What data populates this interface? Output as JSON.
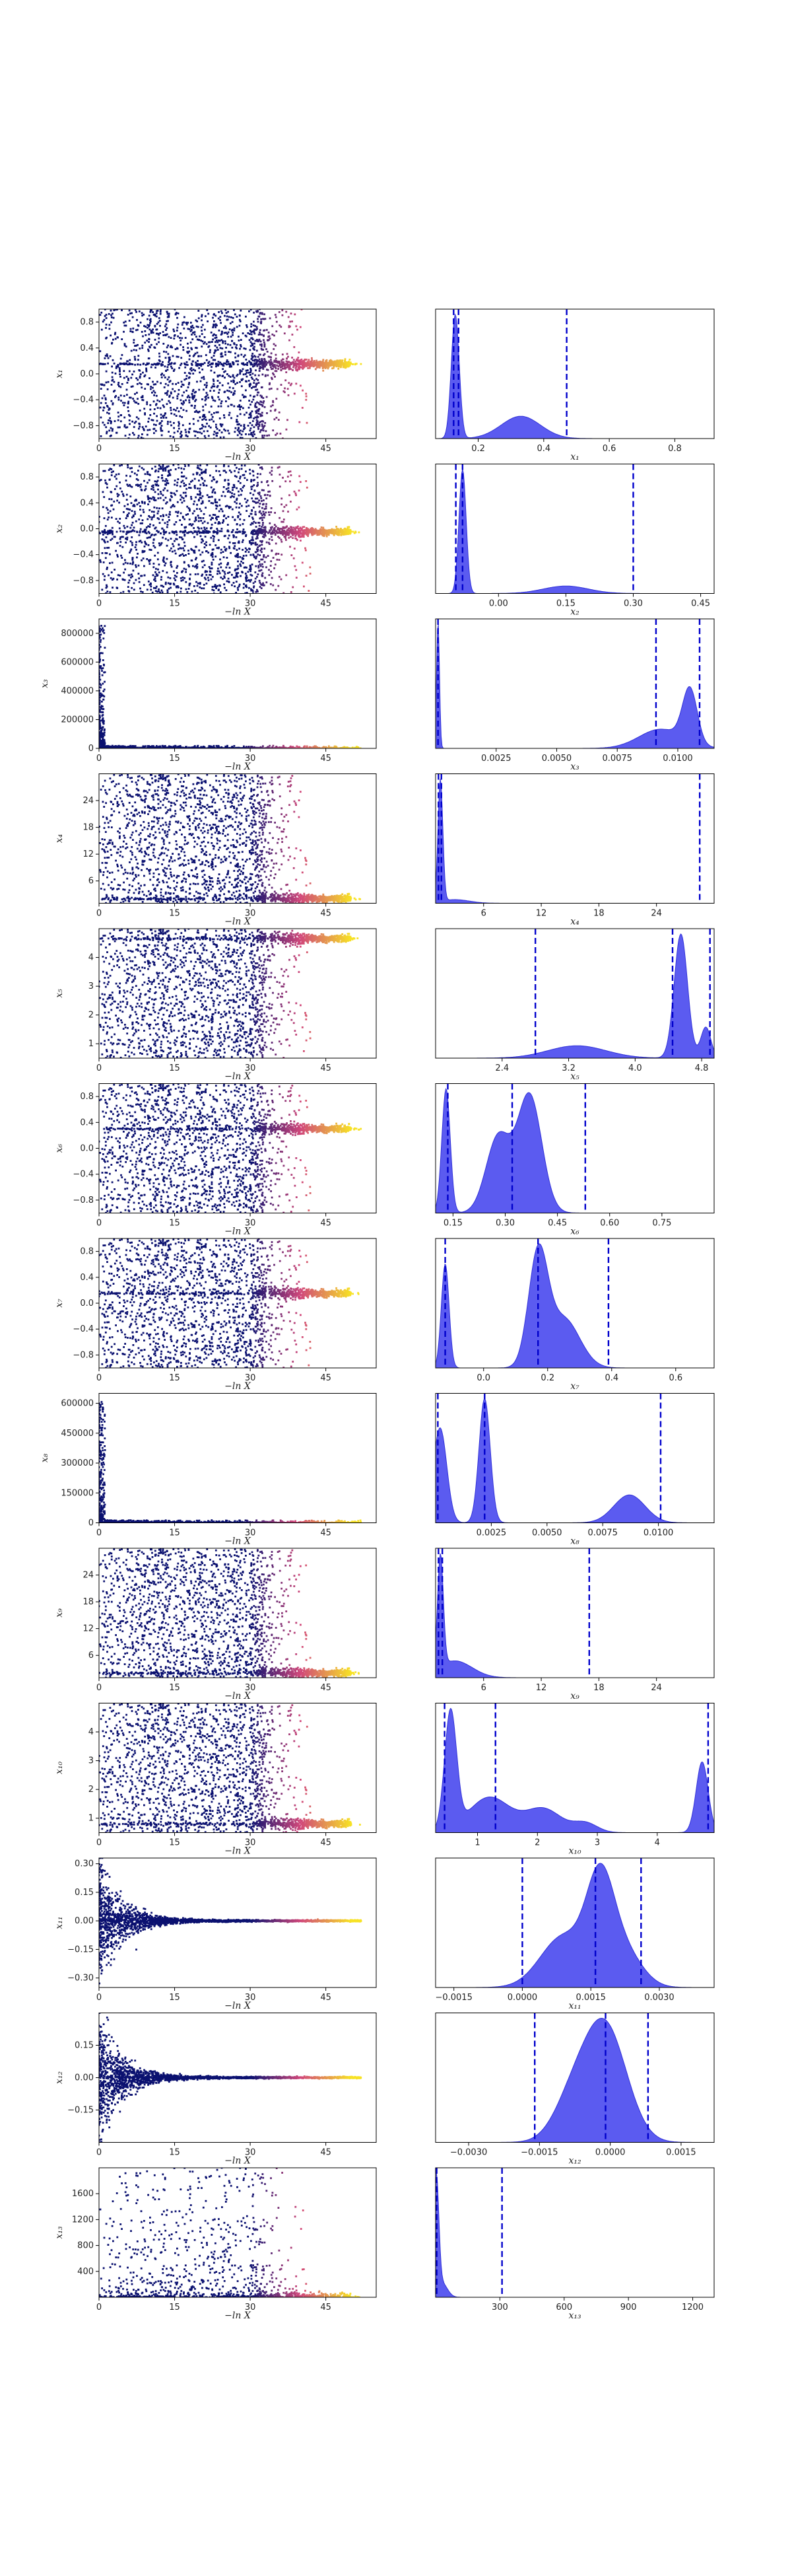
{
  "figure": {
    "scatter_xticks": [
      0,
      15,
      30,
      45
    ],
    "scatter_xlim": [
      0,
      55
    ],
    "scatter_xlabel": "−ln X",
    "colors": {
      "hist_fill": "#5b5bf0",
      "hist_edge": "#3232d8",
      "quantile_line": "#0000cc",
      "scatter_low": "#0b1170",
      "scatter_mid": "#d1487a",
      "scatter_high": "#f7e225"
    }
  },
  "chart_data": [
    {
      "type": "scatter+hist",
      "param": "x1",
      "ylabel": "x₁",
      "xlabel_hist": "x₁",
      "ylim": [
        -1,
        1
      ],
      "yticks": [
        "0.8",
        "0.4",
        "0.0",
        "−0.4",
        "−0.8"
      ],
      "ytick_vals": [
        0.8,
        0.4,
        0,
        -0.4,
        -0.8
      ],
      "converge": 0.15,
      "band_ylim": [
        -1,
        1
      ],
      "hist_xlim": [
        0.07,
        0.92
      ],
      "hist_xticks": [
        "0.2",
        "0.4",
        "0.6",
        "0.8"
      ],
      "hist_xtick_vals": [
        0.2,
        0.4,
        0.6,
        0.8
      ],
      "hist_peaks": [
        [
          0.13,
          1.0,
          0.012
        ],
        [
          0.33,
          0.18,
          0.06
        ]
      ],
      "quantiles": [
        0.125,
        0.14,
        0.47
      ]
    },
    {
      "type": "scatter+hist",
      "param": "x2",
      "ylabel": "x₂",
      "xlabel_hist": "x₂",
      "ylim": [
        -1,
        1
      ],
      "yticks": [
        "0.8",
        "0.4",
        "0.0",
        "−0.4",
        "−0.8"
      ],
      "ytick_vals": [
        0.8,
        0.4,
        0,
        -0.4,
        -0.8
      ],
      "converge": -0.05,
      "band_ylim": [
        -1,
        1
      ],
      "hist_xlim": [
        -0.14,
        0.48
      ],
      "hist_xticks": [
        "0.00",
        "0.15",
        "0.30",
        "0.45"
      ],
      "hist_xtick_vals": [
        0,
        0.15,
        0.3,
        0.45
      ],
      "hist_peaks": [
        [
          -0.08,
          1.0,
          0.008
        ],
        [
          0.15,
          0.06,
          0.05
        ]
      ],
      "quantiles": [
        -0.095,
        -0.08,
        0.3
      ]
    },
    {
      "type": "scatter+hist",
      "param": "x3",
      "ylabel": "x₃",
      "xlabel_hist": "x₃",
      "ylim": [
        0,
        900000
      ],
      "yticks": [
        "800000",
        "600000",
        "400000",
        "200000",
        "0"
      ],
      "ytick_vals": [
        800000,
        600000,
        400000,
        200000,
        0
      ],
      "converge": 0,
      "band_ylim": [
        0,
        900000
      ],
      "spike": true,
      "hist_xlim": [
        0,
        0.0115
      ],
      "hist_xticks": [
        "0.0025",
        "0.0050",
        "0.0075",
        "0.0100"
      ],
      "hist_xtick_vals": [
        0.0025,
        0.005,
        0.0075,
        0.01
      ],
      "hist_peaks": [
        [
          0.0001,
          1.0,
          6e-05
        ],
        [
          0.0093,
          0.15,
          0.0009
        ],
        [
          0.0105,
          0.42,
          0.0003
        ]
      ],
      "quantiles": [
        0.0001,
        0.0091,
        0.0109
      ]
    },
    {
      "type": "scatter+hist",
      "param": "x4",
      "ylabel": "x₄",
      "xlabel_hist": "x₄",
      "ylim": [
        1,
        30
      ],
      "yticks": [
        "24",
        "18",
        "12",
        "6"
      ],
      "ytick_vals": [
        24,
        18,
        12,
        6
      ],
      "converge": 2,
      "band_ylim": [
        1,
        30
      ],
      "hist_xlim": [
        1,
        30
      ],
      "hist_xticks": [
        "6",
        "12",
        "18",
        "24"
      ],
      "hist_xtick_vals": [
        6,
        12,
        18,
        24
      ],
      "hist_peaks": [
        [
          1.5,
          1.0,
          0.25
        ],
        [
          3,
          0.03,
          1.5
        ]
      ],
      "quantiles": [
        1.3,
        1.6,
        28.5
      ]
    },
    {
      "type": "scatter+hist",
      "param": "x5",
      "ylabel": "x₅",
      "xlabel_hist": "x₅",
      "ylim": [
        0.5,
        5
      ],
      "yticks": [
        "4",
        "3",
        "2",
        "1"
      ],
      "ytick_vals": [
        4,
        3,
        2,
        1
      ],
      "converge": 4.65,
      "band_ylim": [
        0.5,
        5
      ],
      "hist_xlim": [
        1.6,
        4.95
      ],
      "hist_xticks": [
        "2.4",
        "3.2",
        "4.0",
        "4.8"
      ],
      "hist_xtick_vals": [
        2.4,
        3.2,
        4,
        4.8
      ],
      "hist_peaks": [
        [
          4.55,
          1.0,
          0.08
        ],
        [
          3.3,
          0.1,
          0.35
        ],
        [
          4.85,
          0.25,
          0.06
        ]
      ],
      "quantiles": [
        2.8,
        4.45,
        4.9
      ]
    },
    {
      "type": "scatter+hist",
      "param": "x6",
      "ylabel": "x₆",
      "xlabel_hist": "x₆",
      "ylim": [
        -1,
        1
      ],
      "yticks": [
        "0.8",
        "0.4",
        "0.0",
        "−0.4",
        "−0.8"
      ],
      "ytick_vals": [
        0.8,
        0.4,
        0,
        -0.4,
        -0.8
      ],
      "converge": 0.3,
      "band_ylim": [
        -1,
        1
      ],
      "hist_xlim": [
        0.1,
        0.9
      ],
      "hist_xticks": [
        "0.15",
        "0.30",
        "0.45",
        "0.60",
        "0.75"
      ],
      "hist_xtick_vals": [
        0.15,
        0.3,
        0.45,
        0.6,
        0.75
      ],
      "hist_peaks": [
        [
          0.13,
          0.9,
          0.012
        ],
        [
          0.28,
          0.55,
          0.035
        ],
        [
          0.37,
          0.85,
          0.035
        ]
      ],
      "quantiles": [
        0.135,
        0.32,
        0.53
      ]
    },
    {
      "type": "scatter+hist",
      "param": "x7",
      "ylabel": "x₇",
      "xlabel_hist": "x₇",
      "ylim": [
        -1,
        1
      ],
      "yticks": [
        "0.8",
        "0.4",
        "0.0",
        "−0.4",
        "−0.8"
      ],
      "ytick_vals": [
        0.8,
        0.4,
        0,
        -0.4,
        -0.8
      ],
      "converge": 0.15,
      "band_ylim": [
        -1,
        1
      ],
      "hist_xlim": [
        -0.15,
        0.72
      ],
      "hist_xticks": [
        "0.0",
        "0.2",
        "0.4",
        "0.6"
      ],
      "hist_xtick_vals": [
        0,
        0.2,
        0.4,
        0.6
      ],
      "hist_peaks": [
        [
          -0.12,
          0.95,
          0.012
        ],
        [
          0.17,
          1.0,
          0.03
        ],
        [
          0.25,
          0.45,
          0.05
        ]
      ],
      "quantiles": [
        -0.12,
        0.17,
        0.39
      ]
    },
    {
      "type": "scatter+hist",
      "param": "x8",
      "ylabel": "x₈",
      "xlabel_hist": "x₈",
      "ylim": [
        0,
        650000
      ],
      "yticks": [
        "600000",
        "450000",
        "300000",
        "150000",
        "0"
      ],
      "ytick_vals": [
        600000,
        450000,
        300000,
        150000,
        0
      ],
      "converge": 0,
      "band_ylim": [
        0,
        650000
      ],
      "spike": true,
      "hist_xlim": [
        0,
        0.0125
      ],
      "hist_xticks": [
        "0.0025",
        "0.0050",
        "0.0075",
        "0.0100"
      ],
      "hist_xtick_vals": [
        0.0025,
        0.005,
        0.0075,
        0.01
      ],
      "hist_peaks": [
        [
          0.0002,
          0.75,
          0.0003
        ],
        [
          0.0022,
          0.98,
          0.00025
        ],
        [
          0.0087,
          0.22,
          0.0007
        ]
      ],
      "quantiles": [
        0.0001,
        0.0022,
        0.0101
      ]
    },
    {
      "type": "scatter+hist",
      "param": "x9",
      "ylabel": "x₉",
      "xlabel_hist": "x₉",
      "ylim": [
        1,
        30
      ],
      "yticks": [
        "24",
        "18",
        "12",
        "6"
      ],
      "ytick_vals": [
        24,
        18,
        12,
        6
      ],
      "converge": 2,
      "band_ylim": [
        1,
        30
      ],
      "hist_xlim": [
        1,
        30
      ],
      "hist_xticks": [
        "6",
        "12",
        "18",
        "24"
      ],
      "hist_xtick_vals": [
        6,
        12,
        18,
        24
      ],
      "hist_peaks": [
        [
          1.5,
          1.0,
          0.3
        ],
        [
          3,
          0.15,
          1.8
        ]
      ],
      "quantiles": [
        1.3,
        1.7,
        17
      ]
    },
    {
      "type": "scatter+hist",
      "param": "x10",
      "ylabel": "x₁₀",
      "xlabel_hist": "x₁₀",
      "ylim": [
        0.5,
        5
      ],
      "yticks": [
        "4",
        "3",
        "2",
        "1"
      ],
      "ytick_vals": [
        4,
        3,
        2,
        1
      ],
      "converge": 0.8,
      "band_ylim": [
        0.5,
        5
      ],
      "hist_xlim": [
        0.3,
        4.95
      ],
      "hist_xticks": [
        "1",
        "2",
        "3",
        "4"
      ],
      "hist_xtick_vals": [
        1,
        2,
        3,
        4
      ],
      "hist_peaks": [
        [
          0.55,
          1.0,
          0.1
        ],
        [
          1.2,
          0.3,
          0.35
        ],
        [
          2.1,
          0.2,
          0.3
        ],
        [
          2.8,
          0.08,
          0.2
        ],
        [
          4.75,
          0.6,
          0.1
        ]
      ],
      "quantiles": [
        0.45,
        1.3,
        4.85
      ]
    },
    {
      "type": "scatter+hist",
      "param": "x11",
      "ylabel": "x₁₁",
      "xlabel_hist": "x₁₁",
      "ylim": [
        -0.35,
        0.33
      ],
      "yticks": [
        "0.30",
        "0.15",
        "0.00",
        "−0.15",
        "−0.30"
      ],
      "ytick_vals": [
        0.3,
        0.15,
        0,
        -0.15,
        -0.3
      ],
      "converge": 0,
      "band_ylim": [
        -0.35,
        0.33
      ],
      "funnel": true,
      "hist_xlim": [
        -0.0019,
        0.0042
      ],
      "hist_xticks": [
        "−0.0015",
        "0.0000",
        "0.0015",
        "0.0030"
      ],
      "hist_xtick_vals": [
        -0.0015,
        0,
        0.0015,
        0.003
      ],
      "hist_peaks": [
        [
          0.0017,
          1.0,
          0.0003
        ],
        [
          0.0009,
          0.55,
          0.0005
        ],
        [
          0.0022,
          0.4,
          0.0004
        ]
      ],
      "quantiles": [
        0.0,
        0.0016,
        0.0026
      ]
    },
    {
      "type": "scatter+hist",
      "param": "x12",
      "ylabel": "x₁₂",
      "xlabel_hist": "x₁₂",
      "ylim": [
        -0.3,
        0.3
      ],
      "yticks": [
        "0.15",
        "0.00",
        "−0.15"
      ],
      "ytick_vals": [
        0.15,
        0,
        -0.15
      ],
      "converge": 0,
      "band_ylim": [
        -0.3,
        0.3
      ],
      "funnel": true,
      "hist_xlim": [
        -0.0037,
        0.0022
      ],
      "hist_xticks": [
        "−0.0030",
        "−0.0015",
        "0.0000",
        "0.0015"
      ],
      "hist_xtick_vals": [
        -0.003,
        -0.0015,
        0,
        0.0015
      ],
      "hist_peaks": [
        [
          -0.0001,
          1.0,
          0.00045
        ],
        [
          -0.0008,
          0.35,
          0.0004
        ]
      ],
      "quantiles": [
        -0.0016,
        -0.0001,
        0.0008
      ]
    },
    {
      "type": "scatter+hist",
      "param": "x13",
      "ylabel": "x₁₃",
      "xlabel_hist": "x₁₃",
      "ylim": [
        0,
        2000
      ],
      "yticks": [
        "1600",
        "1200",
        "800",
        "400"
      ],
      "ytick_vals": [
        1600,
        1200,
        800,
        400
      ],
      "converge": 5,
      "band_ylim": [
        0,
        2000
      ],
      "sparse": true,
      "hist_xlim": [
        0,
        1300
      ],
      "hist_xticks": [
        "300",
        "600",
        "900",
        "1200"
      ],
      "hist_xtick_vals": [
        300,
        600,
        900,
        1200
      ],
      "hist_peaks": [
        [
          3,
          1.0,
          12
        ],
        [
          30,
          0.12,
          25
        ]
      ],
      "quantiles": [
        2,
        5,
        310
      ]
    }
  ]
}
